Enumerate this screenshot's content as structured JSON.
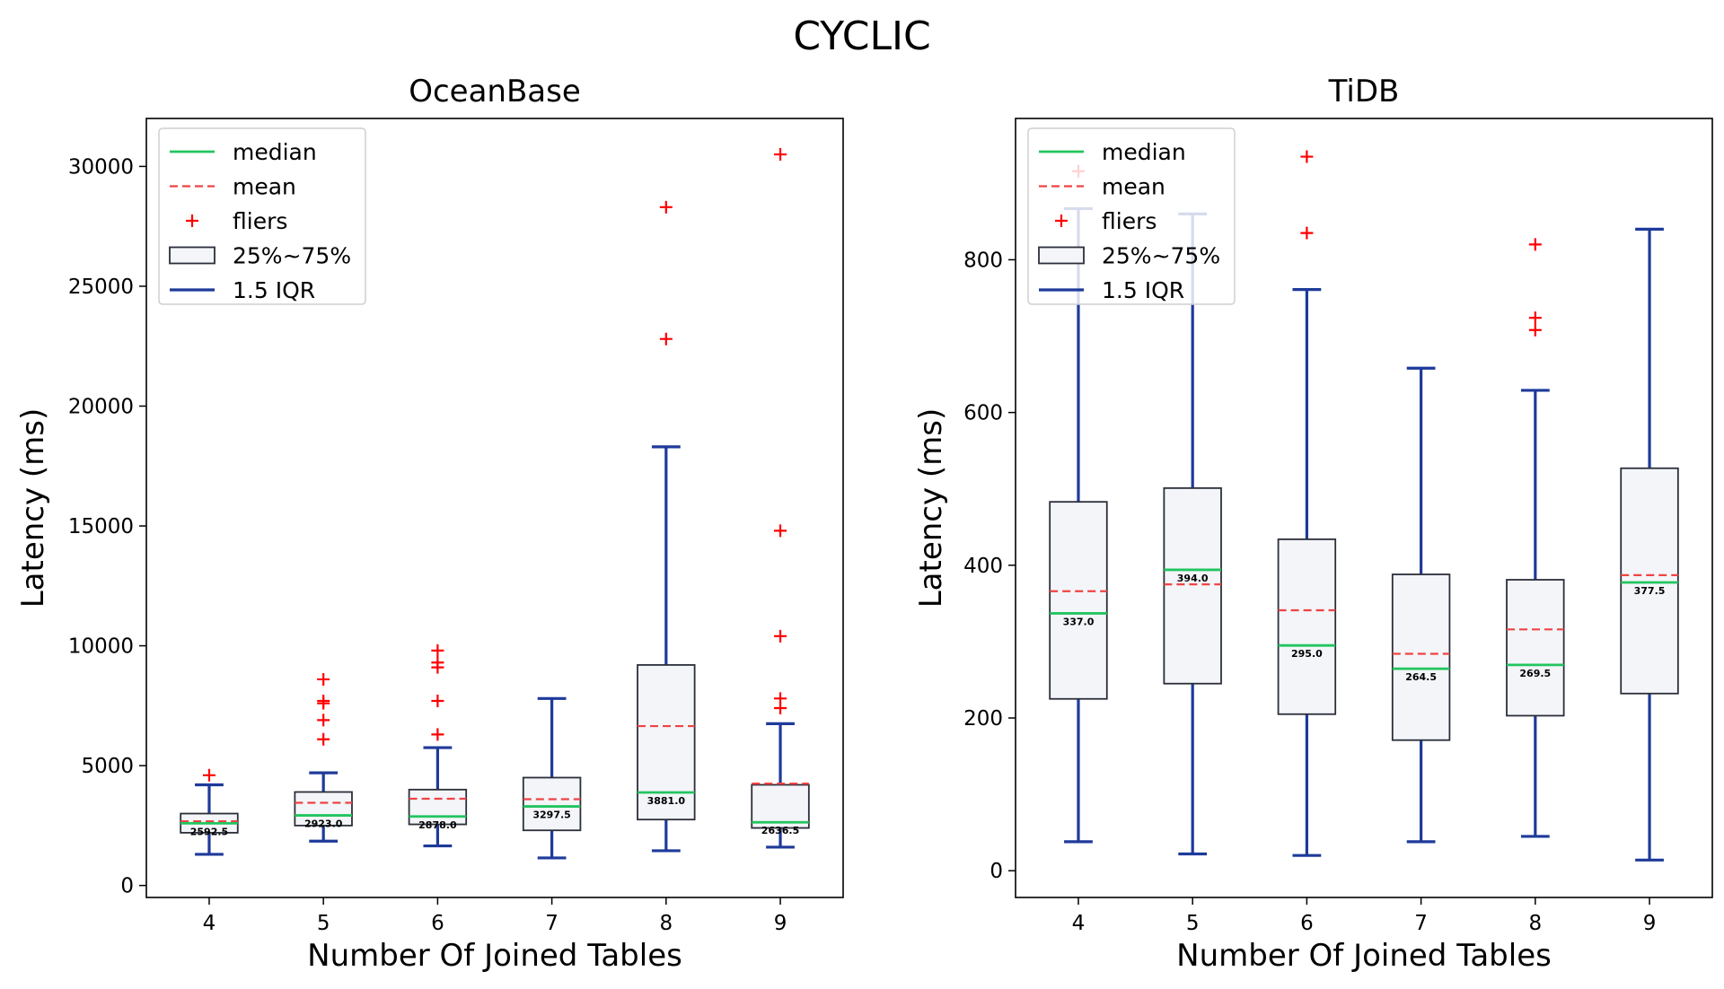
{
  "figure_title": "CYCLIC",
  "colors": {
    "median": "#22c55e",
    "mean": "#ef4444",
    "fliers": "#ff0000",
    "box_fill": "#f3f5f9",
    "box_edge": "#2b2f3a",
    "whisker": "#1e3a9a"
  },
  "legend": {
    "median": "median",
    "mean": "mean",
    "fliers": "fliers",
    "box": "25%~75%",
    "whisker": "1.5 IQR"
  },
  "chart_data": [
    {
      "type": "box",
      "title": "OceanBase",
      "xlabel": "Number Of Joined Tables",
      "ylabel": "Latency (ms)",
      "ylim": [
        -500,
        32000
      ],
      "yticks": [
        0,
        5000,
        10000,
        15000,
        20000,
        25000,
        30000
      ],
      "grid": false,
      "legend_position": "top-left",
      "categories": [
        "4",
        "5",
        "6",
        "7",
        "8",
        "9"
      ],
      "boxes": [
        {
          "q1": 2200,
          "q3": 3000,
          "median": 2592.5,
          "mean": 2680,
          "whisker_low": 1300,
          "whisker_high": 4200,
          "fliers": [
            4600
          ],
          "median_label": "2592.5"
        },
        {
          "q1": 2500,
          "q3": 3900,
          "median": 2923.0,
          "mean": 3450,
          "whisker_low": 1850,
          "whisker_high": 4700,
          "fliers": [
            6100,
            6900,
            7600,
            7700,
            8600
          ],
          "median_label": "2923.0"
        },
        {
          "q1": 2550,
          "q3": 4000,
          "median": 2878.0,
          "mean": 3620,
          "whisker_low": 1650,
          "whisker_high": 5750,
          "fliers": [
            6300,
            7700,
            9100,
            9300,
            9800
          ],
          "median_label": "2878.0"
        },
        {
          "q1": 2300,
          "q3": 4500,
          "median": 3297.5,
          "mean": 3600,
          "whisker_low": 1150,
          "whisker_high": 7800,
          "fliers": [],
          "median_label": "3297.5"
        },
        {
          "q1": 2750,
          "q3": 9200,
          "median": 3881.0,
          "mean": 6650,
          "whisker_low": 1450,
          "whisker_high": 18300,
          "fliers": [
            22800,
            28300
          ],
          "median_label": "3881.0"
        },
        {
          "q1": 2400,
          "q3": 4200,
          "median": 2636.5,
          "mean": 4250,
          "whisker_low": 1600,
          "whisker_high": 6750,
          "fliers": [
            7400,
            7800,
            10400,
            14800,
            30500
          ],
          "median_label": "2636.5"
        }
      ]
    },
    {
      "type": "box",
      "title": "TiDB",
      "xlabel": "Number Of Joined Tables",
      "ylabel": "Latency (ms)",
      "ylim": [
        -35,
        985
      ],
      "yticks": [
        0,
        200,
        400,
        600,
        800
      ],
      "grid": false,
      "legend_position": "top-left",
      "categories": [
        "4",
        "5",
        "6",
        "7",
        "8",
        "9"
      ],
      "boxes": [
        {
          "q1": 225,
          "q3": 483,
          "median": 337.0,
          "mean": 366,
          "whisker_low": 38,
          "whisker_high": 867,
          "fliers": [
            916
          ],
          "median_label": "337.0"
        },
        {
          "q1": 245,
          "q3": 501,
          "median": 394.0,
          "mean": 375,
          "whisker_low": 22,
          "whisker_high": 860,
          "fliers": [],
          "median_label": "394.0"
        },
        {
          "q1": 205,
          "q3": 434,
          "median": 295.0,
          "mean": 341,
          "whisker_low": 20,
          "whisker_high": 761,
          "fliers": [
            835,
            935
          ],
          "median_label": "295.0"
        },
        {
          "q1": 171,
          "q3": 388,
          "median": 264.5,
          "mean": 284,
          "whisker_low": 38,
          "whisker_high": 658,
          "fliers": [],
          "median_label": "264.5"
        },
        {
          "q1": 203,
          "q3": 381,
          "median": 269.5,
          "mean": 316,
          "whisker_low": 45,
          "whisker_high": 629,
          "fliers": [
            708,
            724,
            820
          ],
          "median_label": "269.5"
        },
        {
          "q1": 232,
          "q3": 527,
          "median": 377.5,
          "mean": 387,
          "whisker_low": 14,
          "whisker_high": 840,
          "fliers": [],
          "median_label": "377.5"
        }
      ]
    }
  ]
}
